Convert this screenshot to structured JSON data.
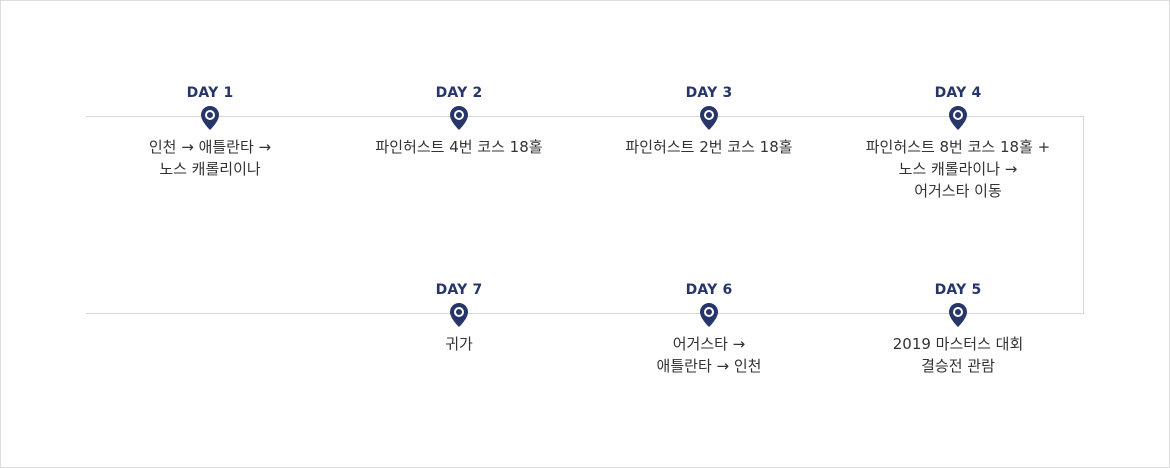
{
  "colors": {
    "accent": "#27366a",
    "line": "#d6d6d6",
    "text": "#333333"
  },
  "icon": "map-pin-icon",
  "itinerary": [
    {
      "day": "DAY 1",
      "text": "인천 → 애틀란타 →\n노스 캐롤리이나"
    },
    {
      "day": "DAY 2",
      "text": "파인허스트 4번 코스 18홀"
    },
    {
      "day": "DAY 3",
      "text": "파인허스트 2번 코스 18홀"
    },
    {
      "day": "DAY 4",
      "text": "파인허스트 8번 코스 18홀 +\n노스 캐롤라이나 →\n어거스타 이동"
    },
    {
      "day": "DAY 5",
      "text": "2019 마스터스 대회\n결승전 관람"
    },
    {
      "day": "DAY 6",
      "text": "어거스타 →\n애틀란타 → 인천"
    },
    {
      "day": "DAY 7",
      "text": "귀가"
    }
  ]
}
